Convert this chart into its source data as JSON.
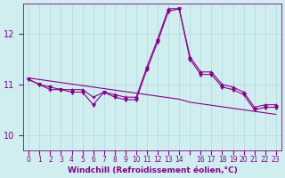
{
  "background_color": "#d0eef0",
  "grid_color": "#b0d8dc",
  "line_color": "#880088",
  "marker_color": "#880088",
  "xlabel": "Windchill (Refroidissement éolien,°C)",
  "yticks": [
    10,
    11,
    12
  ],
  "ylim": [
    9.7,
    12.6
  ],
  "xlim": [
    -0.5,
    23.5
  ],
  "xticks": [
    0,
    1,
    2,
    3,
    4,
    5,
    6,
    7,
    8,
    9,
    10,
    11,
    12,
    13,
    14,
    15,
    16,
    17,
    18,
    19,
    20,
    21,
    22,
    23
  ],
  "xtick_labels": [
    "0",
    "1",
    "2",
    "3",
    "4",
    "5",
    "6",
    "7",
    "8",
    "9",
    "10",
    "11",
    "12",
    "13",
    "14",
    "",
    "16",
    "17",
    "18",
    "19",
    "20",
    "21",
    "22",
    "23"
  ],
  "series1": [
    11.1,
    11.0,
    10.9,
    10.9,
    10.9,
    10.9,
    10.75,
    10.85,
    10.8,
    10.75,
    10.75,
    11.35,
    11.9,
    12.5,
    12.5,
    11.55,
    11.25,
    11.25,
    11.0,
    10.95,
    10.85,
    10.55,
    10.6,
    10.6
  ],
  "series2": [
    11.1,
    11.0,
    10.95,
    10.9,
    10.85,
    10.85,
    10.6,
    10.85,
    10.75,
    10.7,
    10.7,
    11.3,
    11.85,
    12.45,
    12.5,
    11.5,
    11.2,
    11.2,
    10.95,
    10.9,
    10.8,
    10.5,
    10.55,
    10.55
  ],
  "trend_line": [
    11.13,
    11.1,
    11.07,
    11.04,
    11.01,
    10.98,
    10.95,
    10.92,
    10.89,
    10.86,
    10.83,
    10.8,
    10.77,
    10.74,
    10.71,
    10.65,
    10.62,
    10.59,
    10.56,
    10.53,
    10.5,
    10.47,
    10.44,
    10.41
  ]
}
